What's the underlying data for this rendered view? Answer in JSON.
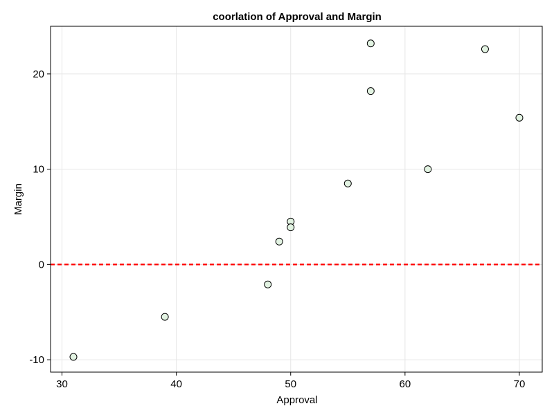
{
  "chart_data": {
    "type": "scatter",
    "title": "coorlation of Approval and  Margin",
    "xlabel": "Approval",
    "ylabel": "Margin",
    "xlim": [
      29,
      72
    ],
    "ylim": [
      -11.3,
      25
    ],
    "xticks": [
      30,
      40,
      50,
      60,
      70
    ],
    "yticks": [
      -10,
      0,
      10,
      20
    ],
    "grid": true,
    "reference_line": {
      "y": 0,
      "color": "#ff0000",
      "style": "dashed"
    },
    "marker": {
      "fill": "#e2f3e2",
      "stroke": "#000000"
    },
    "x": [
      31,
      39,
      48,
      49,
      50,
      50,
      55,
      57,
      57,
      62,
      67,
      70
    ],
    "y": [
      -9.7,
      -5.5,
      -2.1,
      2.4,
      4.5,
      3.9,
      8.5,
      23.2,
      18.2,
      10.0,
      22.6,
      15.4
    ]
  }
}
